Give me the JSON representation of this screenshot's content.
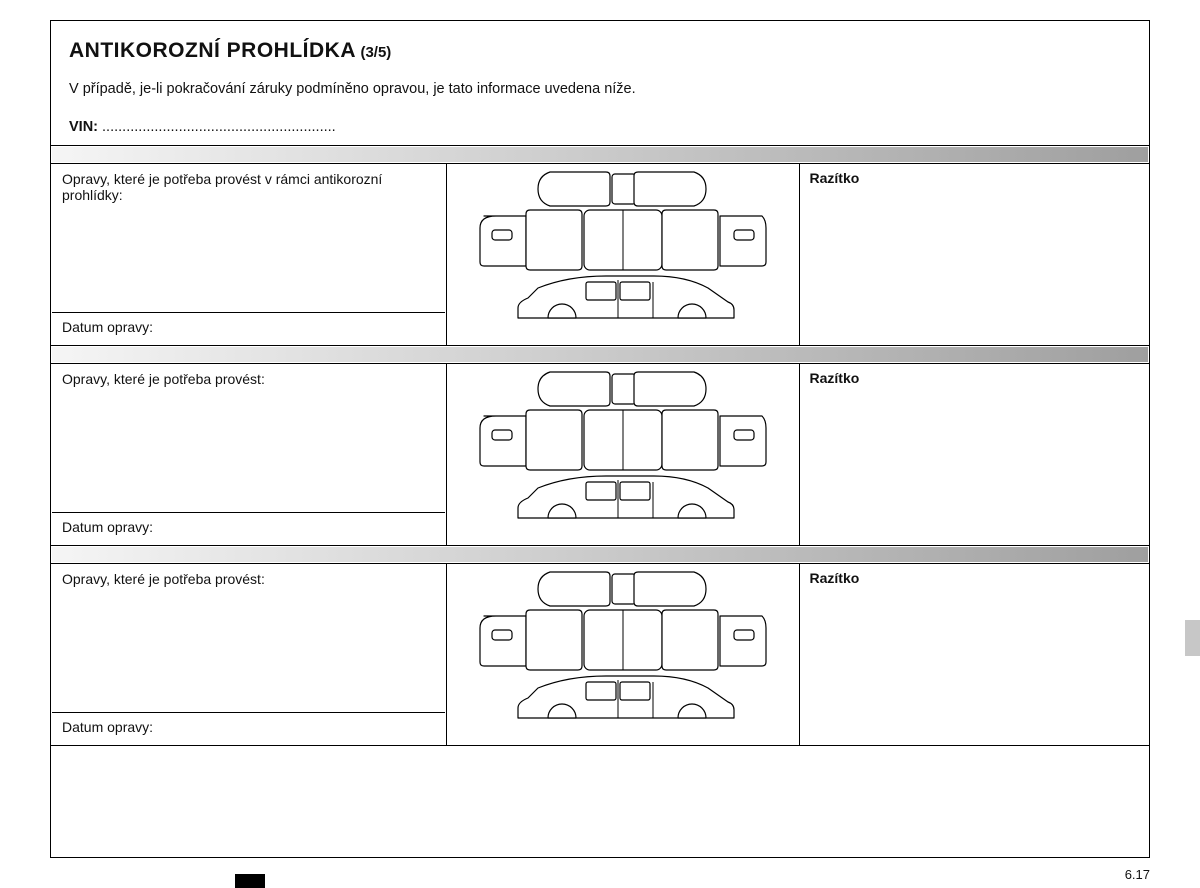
{
  "title_main": "ANTIKOROZNÍ PROHLÍDKA",
  "title_sub": "(3/5)",
  "description": "V případě, je-li pokračování záruky podmíněno opravou, je tato informace uvedena níže.",
  "vin_label": "VIN:",
  "vin_dots": " ..........................................................",
  "page_number": "6.17",
  "gradient_from": "#f5f5f5",
  "gradient_to": "#9f9f9f",
  "diagram_stroke": "#000000",
  "diagram_fill": "#ffffff",
  "rows": [
    {
      "repairs_label": "Opravy, které je potřeba provést v rámci antikorozní prohlídky:",
      "date_label": "Datum opravy:",
      "stamp_label": "Razítko"
    },
    {
      "repairs_label": "Opravy, které je potřeba provést:",
      "date_label": "Datum opravy:",
      "stamp_label": "Razítko"
    },
    {
      "repairs_label": "Opravy, které je potřeba provést:",
      "date_label": "Datum opravy:",
      "stamp_label": "Razítko"
    }
  ]
}
